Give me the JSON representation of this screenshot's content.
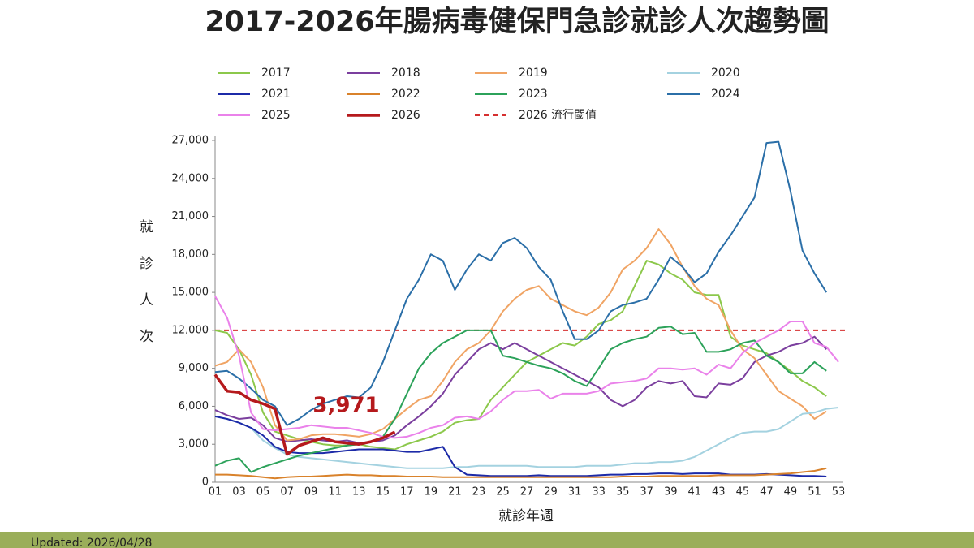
{
  "chart_data": {
    "type": "line",
    "title": "2017-2026年腸病毒健保門急診就診人次趨勢圖",
    "x_label": "就診年週",
    "y_label": "就診人次",
    "footer": "Updated: 2026/04/28",
    "categories": [
      "01",
      null,
      "03",
      null,
      "05",
      null,
      "07",
      null,
      "09",
      null,
      "11",
      null,
      "13",
      null,
      "15",
      null,
      "17",
      null,
      "19",
      null,
      "21",
      null,
      "23",
      null,
      "25",
      null,
      "27",
      null,
      "29",
      null,
      "31",
      null,
      "33",
      null,
      "35",
      null,
      "37",
      null,
      "39",
      null,
      "41",
      null,
      "43",
      null,
      "45",
      null,
      "47",
      null,
      "49",
      null,
      "51",
      null,
      "53"
    ],
    "ylim": [
      0,
      27000
    ],
    "yticks": [
      0,
      {
        "value": 3000,
        "label": "3,000"
      },
      {
        "value": 6000,
        "label": "6,000"
      },
      {
        "value": 9000,
        "label": "9,000"
      },
      {
        "value": 12000,
        "label": "12,000"
      },
      {
        "value": 15000,
        "label": "15,000"
      },
      {
        "value": 18000,
        "label": "18,000"
      },
      {
        "value": 21000,
        "label": "21,000"
      },
      {
        "value": 24000,
        "label": "24,000"
      },
      {
        "value": 27000,
        "label": "27,000"
      }
    ],
    "threshold": {
      "name": "2026 流行閾值",
      "value": 12000,
      "color": "#d62f2f"
    },
    "series": [
      {
        "name": "2017",
        "color": "#8cc84b",
        "values": [
          12000,
          11800,
          10500,
          8500,
          5500,
          4000,
          3700,
          3400,
          3200,
          3000,
          2900,
          2900,
          3000,
          2800,
          2700,
          2600,
          3000,
          3300,
          3600,
          4000,
          4700,
          4900,
          5000,
          6500,
          7500,
          8500,
          9500,
          10000,
          10500,
          11000,
          10800,
          11500,
          12500,
          12800,
          13500,
          15500,
          17500,
          17200,
          16500,
          16000,
          15000,
          14800,
          14800,
          11500,
          10800,
          10500,
          10200,
          9500,
          8800,
          8000,
          7500,
          6800,
          null
        ]
      },
      {
        "name": "2018",
        "color": "#7b3f9e",
        "values": [
          5700,
          5300,
          5000,
          5100,
          4500,
          3500,
          3200,
          3300,
          3400,
          3300,
          3200,
          3300,
          3100,
          3200,
          3300,
          3700,
          4500,
          5200,
          6000,
          7000,
          8500,
          9500,
          10500,
          11000,
          10500,
          11000,
          10500,
          10000,
          9500,
          9000,
          8500,
          8000,
          7500,
          6500,
          6000,
          6500,
          7500,
          8000,
          7800,
          8000,
          6800,
          6700,
          7800,
          7700,
          8200,
          9500,
          10000,
          10300,
          10800,
          11000,
          11500,
          10500,
          null
        ]
      },
      {
        "name": "2019",
        "color": "#f0a464",
        "values": [
          9200,
          9500,
          10500,
          9500,
          7500,
          4500,
          3300,
          3400,
          3700,
          3800,
          3800,
          3700,
          3600,
          3800,
          4200,
          5000,
          5800,
          6500,
          6800,
          8000,
          9500,
          10500,
          11000,
          12000,
          13500,
          14500,
          15200,
          15500,
          14500,
          14000,
          13500,
          13200,
          13800,
          15000,
          16800,
          17500,
          18500,
          20000,
          18800,
          17000,
          15500,
          14500,
          14000,
          12000,
          10500,
          9800,
          8500,
          7200,
          6600,
          6000,
          5000,
          5600,
          null
        ]
      },
      {
        "name": "2020",
        "color": "#a4d2e0",
        "values": [
          5200,
          5000,
          4700,
          4300,
          3300,
          2700,
          2200,
          2000,
          1900,
          1800,
          1700,
          1600,
          1500,
          1400,
          1300,
          1200,
          1100,
          1100,
          1100,
          1100,
          1200,
          1200,
          1300,
          1300,
          1300,
          1300,
          1300,
          1200,
          1200,
          1200,
          1200,
          1300,
          1300,
          1300,
          1400,
          1500,
          1500,
          1600,
          1600,
          1700,
          2000,
          2500,
          3000,
          3500,
          3900,
          4000,
          4000,
          4200,
          4800,
          5400,
          5500,
          5800,
          5900
        ]
      },
      {
        "name": "2021",
        "color": "#1c2aa8",
        "values": [
          5200,
          5000,
          4700,
          4300,
          3700,
          2800,
          2400,
          2300,
          2300,
          2300,
          2400,
          2500,
          2600,
          2600,
          2600,
          2500,
          2400,
          2400,
          2600,
          2800,
          1200,
          600,
          550,
          500,
          500,
          500,
          500,
          550,
          500,
          500,
          500,
          500,
          550,
          600,
          600,
          650,
          650,
          700,
          700,
          650,
          700,
          700,
          700,
          600,
          600,
          600,
          650,
          600,
          550,
          500,
          500,
          450,
          null
        ]
      },
      {
        "name": "2022",
        "color": "#d9822b",
        "values": [
          600,
          600,
          550,
          500,
          400,
          300,
          400,
          450,
          450,
          500,
          550,
          600,
          550,
          550,
          500,
          500,
          450,
          450,
          450,
          400,
          400,
          400,
          400,
          400,
          400,
          400,
          400,
          400,
          400,
          400,
          400,
          400,
          400,
          400,
          450,
          450,
          450,
          500,
          500,
          500,
          500,
          500,
          550,
          550,
          550,
          550,
          600,
          650,
          700,
          800,
          900,
          1100,
          null
        ]
      },
      {
        "name": "2023",
        "color": "#2ca25a",
        "values": [
          1300,
          1700,
          1900,
          800,
          1200,
          1500,
          1800,
          2100,
          2300,
          2500,
          2700,
          2900,
          3000,
          3200,
          3600,
          5000,
          7000,
          9000,
          10200,
          11000,
          11500,
          12000,
          12000,
          12000,
          10000,
          9800,
          9500,
          9200,
          9000,
          8600,
          8000,
          7600,
          9000,
          10500,
          11000,
          11300,
          11500,
          12200,
          12300,
          11700,
          11800,
          10300,
          10300,
          10500,
          11000,
          11200,
          10000,
          9500,
          8600,
          8600,
          9500,
          8800,
          null
        ]
      },
      {
        "name": "2024",
        "color": "#2b6fa8",
        "values": [
          8700,
          8800,
          8200,
          7400,
          6500,
          6000,
          4500,
          5000,
          5700,
          6200,
          6500,
          6800,
          6700,
          7500,
          9500,
          12000,
          14500,
          16000,
          18000,
          17500,
          15200,
          16800,
          18000,
          17500,
          18900,
          19300,
          18500,
          17000,
          16000,
          13500,
          11300,
          11300,
          12000,
          13500,
          14000,
          14200,
          14500,
          16000,
          17800,
          17000,
          15800,
          16500,
          18200,
          19500,
          21000,
          22500,
          26800,
          26900,
          23000,
          18300,
          16500,
          15000,
          null
        ]
      },
      {
        "name": "2025",
        "color": "#ea82ea",
        "values": [
          14700,
          13000,
          10000,
          5500,
          4200,
          4100,
          4200,
          4300,
          4500,
          4400,
          4300,
          4300,
          4100,
          3900,
          3600,
          3500,
          3600,
          3900,
          4300,
          4500,
          5100,
          5200,
          5000,
          5600,
          6500,
          7200,
          7200,
          7300,
          6600,
          7000,
          7000,
          7000,
          7200,
          7800,
          7900,
          8000,
          8200,
          9000,
          9000,
          8900,
          9000,
          8500,
          9300,
          9000,
          10200,
          11000,
          11500,
          12000,
          12700,
          12700,
          11000,
          10700,
          9500
        ]
      },
      {
        "name": "2026",
        "color": "#b5191c",
        "values": [
          8500,
          7200,
          7100,
          6500,
          6200,
          5800,
          2200,
          2900,
          3200,
          3500,
          3200,
          3100,
          3000,
          3200,
          3500,
          3971,
          null,
          null,
          null,
          null,
          null,
          null,
          null,
          null,
          null,
          null,
          null,
          null,
          null,
          null,
          null,
          null,
          null,
          null,
          null,
          null,
          null,
          null,
          null,
          null,
          null,
          null,
          null,
          null,
          null,
          null,
          null,
          null,
          null,
          null,
          null,
          null,
          null
        ],
        "value_labels": [
          null,
          null,
          null,
          null,
          null,
          null,
          null,
          null,
          null,
          null,
          null,
          null,
          null,
          null,
          null,
          "3,971",
          null,
          null,
          null,
          null,
          null,
          null,
          null,
          null,
          null,
          null,
          null,
          null,
          null,
          null,
          null,
          null,
          null,
          null,
          null,
          null,
          null,
          null,
          null,
          null,
          null,
          null,
          null,
          null,
          null,
          null,
          null,
          null,
          null,
          null,
          null,
          null,
          null
        ]
      }
    ]
  }
}
